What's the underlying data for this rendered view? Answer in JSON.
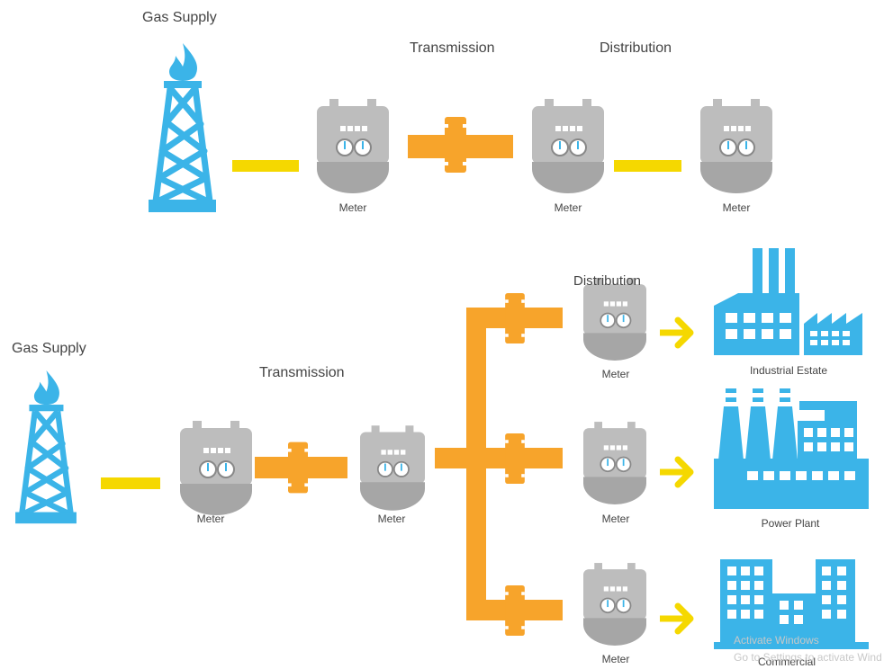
{
  "top": {
    "source": "Gas Supply",
    "transmission": "Transmission",
    "distribution": "Distribution",
    "meters": [
      "Meter",
      "Meter",
      "Meter"
    ]
  },
  "bottom": {
    "source": "Gas Supply",
    "transmission": "Transmission",
    "distribution": "Distribution",
    "meters": [
      "Meter",
      "Meter",
      "Meter",
      "Meter",
      "Meter"
    ],
    "consumers": [
      "Industrial Estate",
      "Power Plant",
      "Commercial"
    ]
  },
  "watermark": [
    "Activate Windows",
    "Go to Settings to activate Wind"
  ]
}
